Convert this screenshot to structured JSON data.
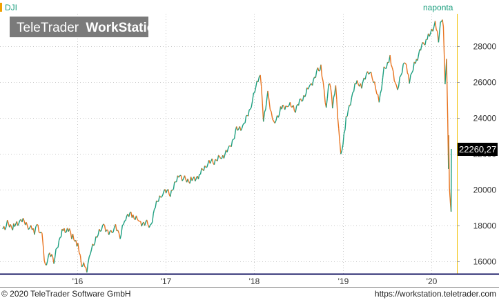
{
  "header": {
    "symbol": "DJI",
    "interval": "naponta",
    "watermark_brand": "TeleTrader",
    "watermark_product": "WorkStation"
  },
  "footer": {
    "copyright": "© 2020 TeleTrader Software GmbH",
    "url": "https://workstation.teletrader.com"
  },
  "colors": {
    "up": "#1a9e7e",
    "down": "#e8731e",
    "grid": "#c8c8c8",
    "axis_line": "#f0c000",
    "last_price_bg": "#000000",
    "last_price_fg": "#ffffff",
    "watermark_bg": "#7a7a7a"
  },
  "chart_data": {
    "type": "line",
    "title": "",
    "xlabel": "",
    "ylabel": "",
    "x_ticks": [
      "'16",
      "'17",
      "'18",
      "'19",
      "'20"
    ],
    "y_ticks": [
      "16000",
      "18000",
      "20000",
      "22000",
      "24000",
      "26000",
      "28000"
    ],
    "ylim": [
      15300,
      29800
    ],
    "xlim": [
      "2015-03-01",
      "2020-03-24"
    ],
    "last_price": 22260.27,
    "last_price_label": "22260,27",
    "grid": true,
    "series": [
      {
        "values": [
          {
            "x": "2015-03-01",
            "y": 17800
          },
          {
            "x": "2015-03-20",
            "y": 18100
          },
          {
            "x": "2015-04-15",
            "y": 17900
          },
          {
            "x": "2015-05-15",
            "y": 18300
          },
          {
            "x": "2015-06-15",
            "y": 17950
          },
          {
            "x": "2015-07-10",
            "y": 17700
          },
          {
            "x": "2015-07-20",
            "y": 18100
          },
          {
            "x": "2015-08-10",
            "y": 17400
          },
          {
            "x": "2015-08-24",
            "y": 15600
          },
          {
            "x": "2015-09-10",
            "y": 16400
          },
          {
            "x": "2015-09-28",
            "y": 16000
          },
          {
            "x": "2015-10-15",
            "y": 17000
          },
          {
            "x": "2015-11-05",
            "y": 17800
          },
          {
            "x": "2015-12-01",
            "y": 17700
          },
          {
            "x": "2015-12-15",
            "y": 17300
          },
          {
            "x": "2016-01-05",
            "y": 16900
          },
          {
            "x": "2016-01-20",
            "y": 15800
          },
          {
            "x": "2016-02-11",
            "y": 15600
          },
          {
            "x": "2016-03-01",
            "y": 16800
          },
          {
            "x": "2016-04-20",
            "y": 18000
          },
          {
            "x": "2016-05-20",
            "y": 17500
          },
          {
            "x": "2016-06-08",
            "y": 17900
          },
          {
            "x": "2016-06-27",
            "y": 17300
          },
          {
            "x": "2016-07-20",
            "y": 18500
          },
          {
            "x": "2016-08-15",
            "y": 18600
          },
          {
            "x": "2016-09-15",
            "y": 18200
          },
          {
            "x": "2016-10-15",
            "y": 18100
          },
          {
            "x": "2016-11-03",
            "y": 17900
          },
          {
            "x": "2016-11-15",
            "y": 18900
          },
          {
            "x": "2016-12-20",
            "y": 19900
          },
          {
            "x": "2017-01-20",
            "y": 19800
          },
          {
            "x": "2017-02-28",
            "y": 20800
          },
          {
            "x": "2017-03-20",
            "y": 20600
          },
          {
            "x": "2017-04-15",
            "y": 20500
          },
          {
            "x": "2017-05-20",
            "y": 20800
          },
          {
            "x": "2017-06-20",
            "y": 21400
          },
          {
            "x": "2017-07-20",
            "y": 21600
          },
          {
            "x": "2017-08-20",
            "y": 21800
          },
          {
            "x": "2017-09-20",
            "y": 22300
          },
          {
            "x": "2017-10-20",
            "y": 23300
          },
          {
            "x": "2017-11-20",
            "y": 23600
          },
          {
            "x": "2017-12-20",
            "y": 24700
          },
          {
            "x": "2018-01-26",
            "y": 26600
          },
          {
            "x": "2018-02-08",
            "y": 23900
          },
          {
            "x": "2018-02-26",
            "y": 25400
          },
          {
            "x": "2018-03-22",
            "y": 23600
          },
          {
            "x": "2018-04-20",
            "y": 24500
          },
          {
            "x": "2018-05-20",
            "y": 24700
          },
          {
            "x": "2018-06-20",
            "y": 24500
          },
          {
            "x": "2018-07-20",
            "y": 25100
          },
          {
            "x": "2018-08-20",
            "y": 25800
          },
          {
            "x": "2018-09-20",
            "y": 26600
          },
          {
            "x": "2018-10-03",
            "y": 26800
          },
          {
            "x": "2018-10-25",
            "y": 24600
          },
          {
            "x": "2018-11-08",
            "y": 26100
          },
          {
            "x": "2018-11-20",
            "y": 24700
          },
          {
            "x": "2018-12-03",
            "y": 25800
          },
          {
            "x": "2018-12-24",
            "y": 21800
          },
          {
            "x": "2019-01-15",
            "y": 23900
          },
          {
            "x": "2019-02-20",
            "y": 25900
          },
          {
            "x": "2019-03-20",
            "y": 25800
          },
          {
            "x": "2019-04-23",
            "y": 26700
          },
          {
            "x": "2019-05-31",
            "y": 24900
          },
          {
            "x": "2019-06-20",
            "y": 26700
          },
          {
            "x": "2019-07-15",
            "y": 27300
          },
          {
            "x": "2019-08-15",
            "y": 25500
          },
          {
            "x": "2019-09-12",
            "y": 27200
          },
          {
            "x": "2019-10-03",
            "y": 26100
          },
          {
            "x": "2019-10-28",
            "y": 27100
          },
          {
            "x": "2019-11-27",
            "y": 28100
          },
          {
            "x": "2019-12-20",
            "y": 28500
          },
          {
            "x": "2020-01-17",
            "y": 29300
          },
          {
            "x": "2020-01-31",
            "y": 28300
          },
          {
            "x": "2020-02-12",
            "y": 29550
          },
          {
            "x": "2020-02-20",
            "y": 29200
          },
          {
            "x": "2020-02-27",
            "y": 25800
          },
          {
            "x": "2020-03-04",
            "y": 27100
          },
          {
            "x": "2020-03-09",
            "y": 23800
          },
          {
            "x": "2020-03-12",
            "y": 21200
          },
          {
            "x": "2020-03-13",
            "y": 23200
          },
          {
            "x": "2020-03-16",
            "y": 20200
          },
          {
            "x": "2020-03-20",
            "y": 19200
          },
          {
            "x": "2020-03-23",
            "y": 18600
          },
          {
            "x": "2020-03-24",
            "y": 22260
          }
        ]
      }
    ]
  }
}
